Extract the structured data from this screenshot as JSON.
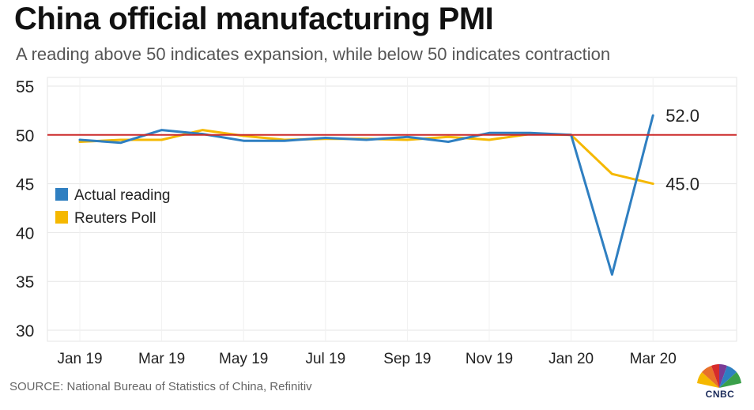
{
  "header": {
    "title": "China official manufacturing PMI",
    "subtitle": "A reading above 50 indicates expansion, while below 50 indicates contraction"
  },
  "footer": {
    "source": "SOURCE: National Bureau of Statistics of China, Refinitiv",
    "logo_text": "CNBC"
  },
  "chart_data": {
    "type": "line",
    "title": "China official manufacturing PMI",
    "subtitle": "A reading above 50 indicates expansion, while below 50 indicates contraction",
    "x": [
      "Jan 19",
      "Feb 19",
      "Mar 19",
      "Apr 19",
      "May 19",
      "Jun 19",
      "Jul 19",
      "Aug 19",
      "Sep 19",
      "Oct 19",
      "Nov 19",
      "Dec 19",
      "Jan 20",
      "Feb 20",
      "Mar 20"
    ],
    "x_tick_labels": [
      "Jan 19",
      "Mar 19",
      "May 19",
      "Jul 19",
      "Sep 19",
      "Nov 19",
      "Jan 20",
      "Mar 20"
    ],
    "y_ticks": [
      30,
      35,
      40,
      45,
      50,
      55
    ],
    "ylim": [
      30,
      55
    ],
    "reference_line": {
      "value": 50,
      "color": "#cc2a2a"
    },
    "series": [
      {
        "name": "Actual reading",
        "color": "#2f7fc1",
        "values": [
          49.5,
          49.2,
          50.5,
          50.1,
          49.4,
          49.4,
          49.7,
          49.5,
          49.8,
          49.3,
          50.2,
          50.2,
          50.0,
          35.7,
          52.0
        ],
        "end_label": "52.0"
      },
      {
        "name": "Reuters Poll",
        "color": "#f5b800",
        "values": [
          49.3,
          49.5,
          49.5,
          50.5,
          49.9,
          49.5,
          49.6,
          49.6,
          49.5,
          49.8,
          49.5,
          50.1,
          50.0,
          46.0,
          45.0
        ],
        "end_label": "45.0"
      }
    ],
    "legend_position": "center-left",
    "grid": true
  }
}
